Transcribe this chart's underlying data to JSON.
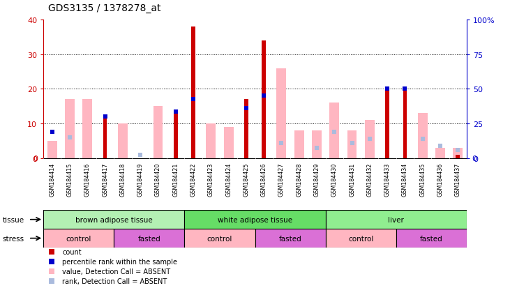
{
  "title": "GDS3135 / 1378278_at",
  "samples": [
    "GSM184414",
    "GSM184415",
    "GSM184416",
    "GSM184417",
    "GSM184418",
    "GSM184419",
    "GSM184420",
    "GSM184421",
    "GSM184422",
    "GSM184423",
    "GSM184424",
    "GSM184425",
    "GSM184426",
    "GSM184427",
    "GSM184428",
    "GSM184429",
    "GSM184430",
    "GSM184431",
    "GSM184432",
    "GSM184433",
    "GSM184434",
    "GSM184435",
    "GSM184436",
    "GSM184437"
  ],
  "count": [
    0,
    0,
    0,
    12,
    0,
    0,
    0,
    14,
    38,
    0,
    0,
    17,
    34,
    0,
    0,
    0,
    0,
    0,
    0,
    20,
    20,
    0,
    0,
    1
  ],
  "percentile_rank": [
    7.5,
    0,
    0,
    12,
    0,
    0,
    0,
    13.5,
    17,
    0,
    0,
    14.5,
    18,
    0,
    0,
    0,
    0,
    0,
    0,
    20,
    20,
    0,
    0,
    0
  ],
  "value_absent": [
    5,
    17,
    17,
    0,
    10,
    0,
    15,
    0,
    0,
    10,
    9,
    0,
    0,
    26,
    8,
    8,
    16,
    8,
    11,
    0,
    0,
    13,
    3,
    3
  ],
  "rank_absent": [
    0,
    15,
    0,
    0,
    0,
    2.5,
    0,
    0,
    0,
    0,
    0,
    0,
    0,
    11,
    0,
    7.5,
    19,
    11,
    14,
    0,
    0,
    14,
    9,
    6
  ],
  "ylim_left": [
    0,
    40
  ],
  "ylim_right": [
    0,
    100
  ],
  "yticks_left": [
    0,
    10,
    20,
    30,
    40
  ],
  "yticks_right": [
    0,
    25,
    50,
    75,
    100
  ],
  "tissue_spans": [
    {
      "label": "brown adipose tissue",
      "start": 0,
      "end": 8,
      "color": "#b3f0b3"
    },
    {
      "label": "white adipose tissue",
      "start": 8,
      "end": 16,
      "color": "#66dd66"
    },
    {
      "label": "liver",
      "start": 16,
      "end": 24,
      "color": "#90ee90"
    }
  ],
  "stress_spans": [
    {
      "label": "control",
      "start": 0,
      "end": 4,
      "color": "#ffb6c1"
    },
    {
      "label": "fasted",
      "start": 4,
      "end": 8,
      "color": "#da70d6"
    },
    {
      "label": "control",
      "start": 8,
      "end": 12,
      "color": "#ffb6c1"
    },
    {
      "label": "fasted",
      "start": 12,
      "end": 16,
      "color": "#da70d6"
    },
    {
      "label": "control",
      "start": 16,
      "end": 20,
      "color": "#ffb6c1"
    },
    {
      "label": "fasted",
      "start": 20,
      "end": 24,
      "color": "#da70d6"
    }
  ],
  "count_color": "#CC0000",
  "percentile_color": "#0000CC",
  "value_absent_color": "#FFB6C1",
  "rank_absent_color": "#AABBDD",
  "axis_left_color": "#CC0000",
  "axis_right_color": "#0000CC",
  "label_bg_color": "#CCCCCC",
  "legend_items": [
    {
      "color": "#CC0000",
      "label": "count"
    },
    {
      "color": "#0000CC",
      "label": "percentile rank within the sample"
    },
    {
      "color": "#FFB6C1",
      "label": "value, Detection Call = ABSENT"
    },
    {
      "color": "#AABBDD",
      "label": "rank, Detection Call = ABSENT"
    }
  ]
}
